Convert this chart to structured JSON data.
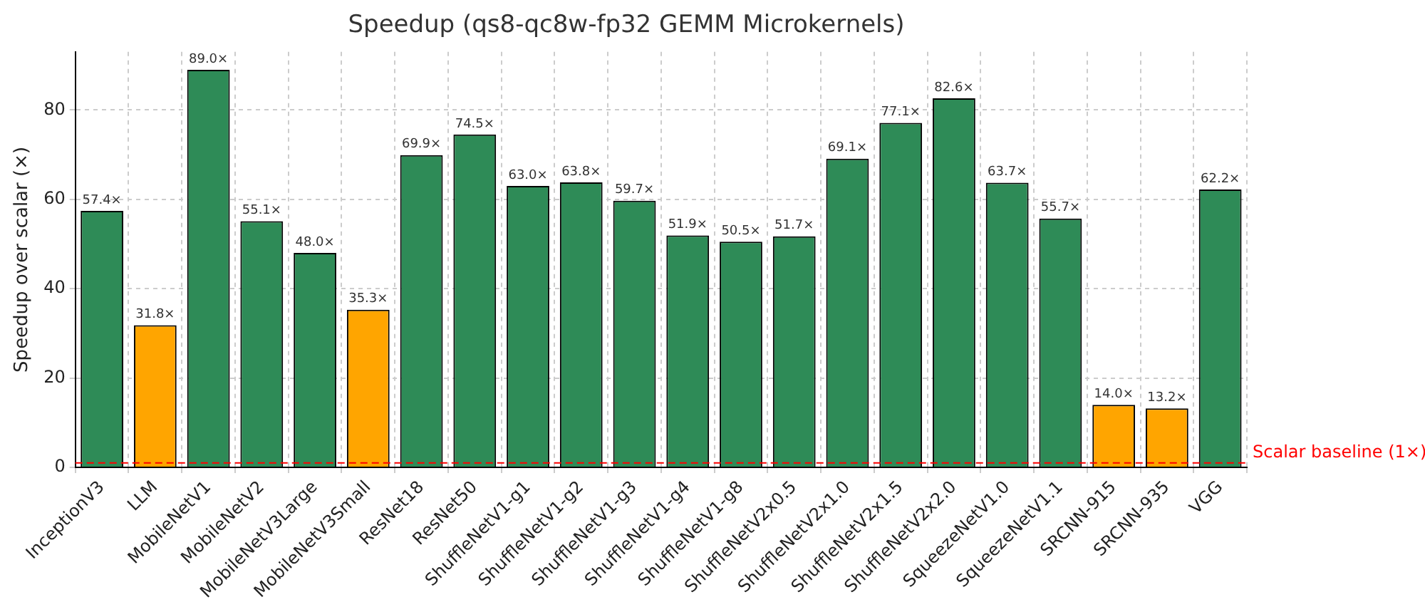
{
  "chart_data": {
    "type": "bar",
    "title": "Speedup (qs8-qc8w-fp32 GEMM Microkernels)",
    "ylabel": "Speedup over scalar (×)",
    "categories": [
      "InceptionV3",
      "LLM",
      "MobileNetV1",
      "MobileNetV2",
      "MobileNetV3Large",
      "MobileNetV3Small",
      "ResNet18",
      "ResNet50",
      "ShuffleNetV1-g1",
      "ShuffleNetV1-g2",
      "ShuffleNetV1-g3",
      "ShuffleNetV1-g4",
      "ShuffleNetV1-g8",
      "ShuffleNetV2x0.5",
      "ShuffleNetV2x1.0",
      "ShuffleNetV2x1.5",
      "ShuffleNetV2x2.0",
      "SqueezeNetV1.0",
      "SqueezeNetV1.1",
      "SRCNN-915",
      "SRCNN-935",
      "VGG"
    ],
    "values": [
      57.4,
      31.8,
      89.0,
      55.1,
      48.0,
      35.3,
      69.9,
      74.5,
      63.0,
      63.8,
      59.7,
      51.9,
      50.5,
      51.7,
      69.1,
      77.1,
      82.6,
      63.7,
      55.7,
      14.0,
      13.2,
      62.2
    ],
    "value_labels": [
      "57.4×",
      "31.8×",
      "89.0×",
      "55.1×",
      "48.0×",
      "35.3×",
      "69.9×",
      "74.5×",
      "63.0×",
      "63.8×",
      "59.7×",
      "51.9×",
      "50.5×",
      "51.7×",
      "69.1×",
      "77.1×",
      "82.6×",
      "63.7×",
      "55.7×",
      "14.0×",
      "13.2×",
      "62.2×"
    ],
    "colors": [
      "#2e8b57",
      "#ffa500",
      "#2e8b57",
      "#2e8b57",
      "#2e8b57",
      "#ffa500",
      "#2e8b57",
      "#2e8b57",
      "#2e8b57",
      "#2e8b57",
      "#2e8b57",
      "#2e8b57",
      "#2e8b57",
      "#2e8b57",
      "#2e8b57",
      "#2e8b57",
      "#2e8b57",
      "#2e8b57",
      "#2e8b57",
      "#ffa500",
      "#ffa500",
      "#2e8b57"
    ],
    "ylim": [
      0,
      93
    ],
    "yticks": [
      0,
      20,
      40,
      60,
      80
    ],
    "grid": true,
    "legend": false,
    "ref_lines": [
      {
        "axis": "y",
        "value": 1,
        "label": "Scalar baseline (1×)",
        "color": "#ff0000",
        "line_style": "dashed"
      }
    ]
  }
}
